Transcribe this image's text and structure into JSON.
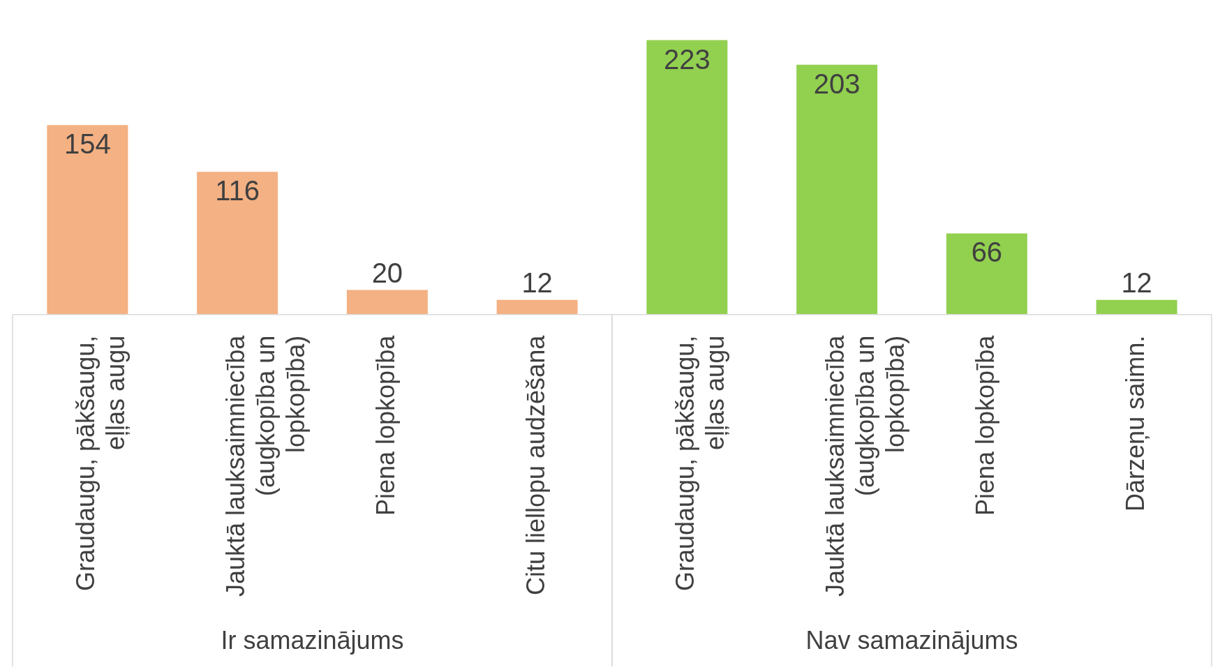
{
  "chart_data": {
    "type": "bar",
    "categories": [
      "Graudaugu, pākšaugu, eļļas augu",
      "Jauktā lauksaimniecība (augkopība un lopkopība)",
      "Piena lopkopība",
      "Citu liellopu audzēšana",
      "Graudaugu, pākšaugu, eļļas augu",
      "Jauktā lauksaimniecība (augkopība un lopkopība)",
      "Piena lopkopība",
      "Dārzeņu saimn."
    ],
    "series": [
      {
        "color": "#f4b183",
        "values": [
          154,
          116,
          20,
          12,
          null,
          null,
          null,
          null
        ]
      },
      {
        "color": "#92d050",
        "values": [
          null,
          null,
          null,
          null,
          223,
          203,
          66,
          12
        ]
      }
    ],
    "annotations": [
      "Ir samazinājums",
      "Nav samazinājums"
    ],
    "data_labels": true,
    "legend": false,
    "grid": false
  }
}
